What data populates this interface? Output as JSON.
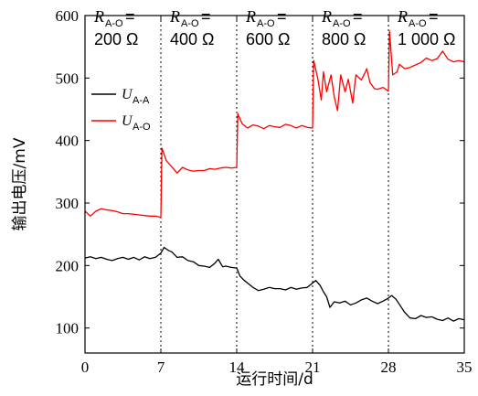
{
  "chart_data": {
    "type": "line",
    "xlabel": "运行时间/d",
    "ylabel": "输出电压/mV",
    "xlim": [
      0,
      35
    ],
    "ylim": [
      60,
      600
    ],
    "xticks": [
      "0",
      "7",
      "14",
      "21",
      "28",
      "35"
    ],
    "yticks": [
      "100",
      "200",
      "300",
      "400",
      "500",
      "600"
    ],
    "xtick_values": [
      0,
      7,
      14,
      21,
      28,
      35
    ],
    "ytick_values": [
      100,
      200,
      300,
      400,
      500,
      600
    ],
    "phase_dividers": [
      7,
      14,
      21,
      28
    ],
    "annotations": [
      {
        "var": "R",
        "sub": "A-O",
        "eq": "=",
        "value": "200 Ω"
      },
      {
        "var": "R",
        "sub": "A-O",
        "eq": "=",
        "value": "400 Ω"
      },
      {
        "var": "R",
        "sub": "A-O",
        "eq": "=",
        "value": "600 Ω"
      },
      {
        "var": "R",
        "sub": "A-O",
        "eq": "=",
        "value": "800 Ω"
      },
      {
        "var": "R",
        "sub": "A-O",
        "eq": "=",
        "value": "1 000 Ω"
      }
    ],
    "legend_position": "upper-left",
    "series": [
      {
        "name_var": "U",
        "name_sub": "A-A",
        "color": "#000000",
        "points": [
          [
            0,
            212
          ],
          [
            0.5,
            214
          ],
          [
            1,
            211
          ],
          [
            1.5,
            213
          ],
          [
            2,
            210
          ],
          [
            2.5,
            208
          ],
          [
            3,
            211
          ],
          [
            3.5,
            213
          ],
          [
            4,
            210
          ],
          [
            4.5,
            213
          ],
          [
            5,
            209
          ],
          [
            5.5,
            214
          ],
          [
            6,
            211
          ],
          [
            6.5,
            213
          ],
          [
            7,
            220
          ],
          [
            7.3,
            229
          ],
          [
            7.7,
            224
          ],
          [
            8,
            222
          ],
          [
            8.5,
            213
          ],
          [
            9,
            214
          ],
          [
            9.5,
            208
          ],
          [
            10,
            206
          ],
          [
            10.5,
            200
          ],
          [
            11,
            199
          ],
          [
            11.5,
            197
          ],
          [
            12,
            204
          ],
          [
            12.3,
            210
          ],
          [
            12.7,
            198
          ],
          [
            13,
            199
          ],
          [
            13.5,
            197
          ],
          [
            14,
            196
          ],
          [
            14.3,
            183
          ],
          [
            14.7,
            176
          ],
          [
            15,
            172
          ],
          [
            15.5,
            165
          ],
          [
            16,
            160
          ],
          [
            16.5,
            162
          ],
          [
            17,
            165
          ],
          [
            17.5,
            163
          ],
          [
            18,
            163
          ],
          [
            18.5,
            161
          ],
          [
            19,
            165
          ],
          [
            19.5,
            162
          ],
          [
            20,
            164
          ],
          [
            20.5,
            165
          ],
          [
            21,
            172
          ],
          [
            21.3,
            176
          ],
          [
            21.7,
            168
          ],
          [
            22,
            158
          ],
          [
            22.3,
            150
          ],
          [
            22.6,
            133
          ],
          [
            23,
            142
          ],
          [
            23.5,
            140
          ],
          [
            24,
            143
          ],
          [
            24.5,
            137
          ],
          [
            25,
            140
          ],
          [
            25.5,
            145
          ],
          [
            26,
            148
          ],
          [
            26.5,
            143
          ],
          [
            27,
            139
          ],
          [
            27.5,
            143
          ],
          [
            28,
            148
          ],
          [
            28.3,
            152
          ],
          [
            28.7,
            146
          ],
          [
            29,
            138
          ],
          [
            29.5,
            125
          ],
          [
            30,
            116
          ],
          [
            30.5,
            115
          ],
          [
            31,
            120
          ],
          [
            31.5,
            117
          ],
          [
            32,
            118
          ],
          [
            32.5,
            114
          ],
          [
            33,
            112
          ],
          [
            33.5,
            116
          ],
          [
            34,
            111
          ],
          [
            34.5,
            115
          ],
          [
            35,
            113
          ]
        ]
      },
      {
        "name_var": "U",
        "name_sub": "A-O",
        "color": "#ff0000",
        "points": [
          [
            0,
            287
          ],
          [
            0.5,
            279
          ],
          [
            1,
            287
          ],
          [
            1.5,
            291
          ],
          [
            2,
            289
          ],
          [
            2.5,
            288
          ],
          [
            3,
            286
          ],
          [
            3.5,
            283
          ],
          [
            4,
            283
          ],
          [
            4.5,
            282
          ],
          [
            5,
            281
          ],
          [
            5.5,
            280
          ],
          [
            6,
            279
          ],
          [
            6.5,
            279
          ],
          [
            7,
            277
          ],
          [
            7.1,
            388
          ],
          [
            7.5,
            368
          ],
          [
            8,
            358
          ],
          [
            8.5,
            348
          ],
          [
            9,
            357
          ],
          [
            9.5,
            353
          ],
          [
            10,
            351
          ],
          [
            10.5,
            352
          ],
          [
            11,
            352
          ],
          [
            11.5,
            355
          ],
          [
            12,
            354
          ],
          [
            12.5,
            356
          ],
          [
            13,
            357
          ],
          [
            13.5,
            356
          ],
          [
            14,
            357
          ],
          [
            14.1,
            443
          ],
          [
            14.5,
            427
          ],
          [
            15,
            420
          ],
          [
            15.5,
            425
          ],
          [
            16,
            423
          ],
          [
            16.5,
            419
          ],
          [
            17,
            424
          ],
          [
            17.5,
            422
          ],
          [
            18,
            421
          ],
          [
            18.5,
            426
          ],
          [
            19,
            424
          ],
          [
            19.5,
            420
          ],
          [
            20,
            424
          ],
          [
            20.5,
            421
          ],
          [
            21,
            420
          ],
          [
            21.1,
            528
          ],
          [
            21.5,
            498
          ],
          [
            21.8,
            465
          ],
          [
            22,
            510
          ],
          [
            22.3,
            478
          ],
          [
            22.7,
            505
          ],
          [
            23,
            470
          ],
          [
            23.3,
            448
          ],
          [
            23.6,
            505
          ],
          [
            24,
            478
          ],
          [
            24.3,
            498
          ],
          [
            24.7,
            460
          ],
          [
            25,
            505
          ],
          [
            25.5,
            497
          ],
          [
            25.8,
            507
          ],
          [
            26,
            515
          ],
          [
            26.3,
            493
          ],
          [
            26.7,
            483
          ],
          [
            27,
            482
          ],
          [
            27.5,
            485
          ],
          [
            28,
            479
          ],
          [
            28.1,
            575
          ],
          [
            28.4,
            505
          ],
          [
            28.8,
            510
          ],
          [
            29,
            522
          ],
          [
            29.5,
            515
          ],
          [
            30,
            517
          ],
          [
            30.5,
            521
          ],
          [
            31,
            525
          ],
          [
            31.5,
            532
          ],
          [
            32,
            528
          ],
          [
            32.5,
            531
          ],
          [
            33,
            543
          ],
          [
            33.5,
            530
          ],
          [
            34,
            526
          ],
          [
            34.5,
            528
          ],
          [
            35,
            526
          ]
        ]
      }
    ]
  }
}
